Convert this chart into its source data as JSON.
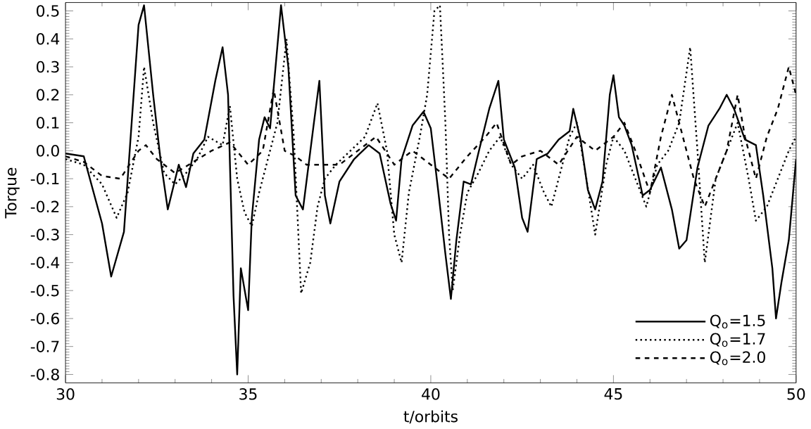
{
  "chart_data": {
    "type": "line",
    "xlabel": "t/orbits",
    "ylabel": "Torque",
    "xlim": [
      30,
      50
    ],
    "ylim": [
      -0.83,
      0.53
    ],
    "xticks": [
      30,
      35,
      40,
      45,
      50
    ],
    "yticks": [
      -0.8,
      -0.7,
      -0.6,
      -0.5,
      -0.4,
      -0.3,
      -0.2,
      -0.1,
      {
        "value": 0,
        "label": "0.0"
      },
      0.1,
      0.2,
      0.3,
      0.4,
      0.5
    ],
    "legend": "bottom right",
    "grid": false,
    "series": [
      {
        "name": "Q$_{o}$=1.5",
        "color": "#000000",
        "line_style": "solid",
        "x": [
          30,
          30.5,
          31.0,
          31.25,
          31.6,
          32.0,
          32.15,
          32.4,
          32.6,
          32.8,
          33.1,
          33.3,
          33.5,
          33.8,
          34.1,
          34.3,
          34.45,
          34.6,
          34.7,
          34.8,
          35.0,
          35.1,
          35.3,
          35.45,
          35.6,
          35.9,
          36.1,
          36.3,
          36.5,
          36.8,
          36.95,
          37.1,
          37.25,
          37.5,
          37.9,
          38.3,
          38.6,
          38.9,
          39.05,
          39.2,
          39.5,
          39.8,
          40.0,
          40.2,
          40.4,
          40.55,
          40.7,
          40.9,
          41.1,
          41.3,
          41.6,
          41.85,
          42.0,
          42.3,
          42.5,
          42.65,
          42.9,
          43.2,
          43.5,
          43.8,
          43.9,
          44.1,
          44.3,
          44.5,
          44.7,
          44.9,
          45.0,
          45.15,
          45.3,
          45.5,
          45.8,
          46.0,
          46.3,
          46.6,
          46.8,
          47.0,
          47.3,
          47.6,
          47.9,
          48.1,
          48.3,
          48.6,
          48.9,
          49.1,
          49.35,
          49.45,
          49.6,
          49.8,
          50.0
        ],
        "values": [
          -0.01,
          -0.02,
          -0.26,
          -0.45,
          -0.29,
          0.45,
          0.52,
          0.2,
          -0.03,
          -0.21,
          -0.05,
          -0.13,
          -0.01,
          0.04,
          0.25,
          0.37,
          0.2,
          -0.52,
          -0.8,
          -0.42,
          -0.57,
          -0.24,
          0.04,
          0.12,
          0.08,
          0.52,
          0.3,
          -0.16,
          -0.21,
          0.1,
          0.25,
          -0.16,
          -0.26,
          -0.11,
          -0.03,
          0.02,
          -0.01,
          -0.19,
          -0.25,
          -0.03,
          0.09,
          0.14,
          0.08,
          -0.14,
          -0.37,
          -0.53,
          -0.32,
          -0.11,
          -0.12,
          -0.01,
          0.15,
          0.25,
          0.04,
          -0.06,
          -0.24,
          -0.29,
          -0.03,
          -0.01,
          0.04,
          0.07,
          0.15,
          0.04,
          -0.14,
          -0.21,
          -0.11,
          0.2,
          0.27,
          0.12,
          0.09,
          0.02,
          -0.16,
          -0.14,
          -0.06,
          -0.21,
          -0.35,
          -0.32,
          -0.06,
          0.09,
          0.15,
          0.2,
          0.15,
          0.04,
          0.02,
          -0.16,
          -0.42,
          -0.6,
          -0.47,
          -0.32,
          -0.03
        ]
      },
      {
        "name": "Q$_{o}$=1.7",
        "color": "#000000",
        "line_style": "dotted",
        "x": [
          30,
          30.5,
          31.0,
          31.4,
          31.7,
          32.0,
          32.15,
          32.4,
          32.7,
          33.0,
          33.3,
          33.6,
          33.9,
          34.3,
          34.5,
          34.7,
          34.9,
          35.1,
          35.3,
          35.5,
          35.8,
          36.05,
          36.25,
          36.45,
          36.7,
          36.9,
          37.1,
          37.4,
          37.8,
          38.2,
          38.54,
          38.8,
          39.0,
          39.2,
          39.4,
          39.7,
          39.9,
          40.1,
          40.25,
          40.4,
          40.5,
          40.6,
          40.8,
          41.0,
          41.3,
          41.6,
          41.9,
          42.2,
          42.5,
          42.8,
          43.1,
          43.3,
          43.5,
          43.8,
          44.0,
          44.2,
          44.5,
          44.8,
          45.0,
          45.3,
          45.6,
          45.9,
          46.2,
          46.5,
          46.8,
          47.1,
          47.3,
          47.5,
          47.8,
          48.1,
          48.4,
          48.7,
          48.9,
          49.2,
          49.5,
          49.8,
          50.0
        ],
        "values": [
          -0.03,
          -0.05,
          -0.12,
          -0.24,
          -0.15,
          0.05,
          0.3,
          0.1,
          -0.08,
          -0.12,
          -0.08,
          -0.03,
          0.05,
          0.02,
          0.16,
          -0.1,
          -0.22,
          -0.27,
          -0.15,
          -0.05,
          0.1,
          0.4,
          0.05,
          -0.51,
          -0.4,
          -0.2,
          -0.1,
          -0.05,
          0.0,
          0.05,
          0.17,
          0.0,
          -0.3,
          -0.4,
          -0.15,
          0.05,
          0.2,
          0.5,
          0.52,
          0.1,
          -0.3,
          -0.5,
          -0.3,
          -0.15,
          -0.08,
          0.0,
          0.05,
          -0.05,
          -0.1,
          -0.05,
          -0.15,
          -0.2,
          -0.1,
          0.05,
          0.1,
          -0.05,
          -0.3,
          -0.05,
          0.05,
          0.0,
          -0.1,
          -0.2,
          -0.05,
          0.0,
          0.1,
          0.37,
          0.0,
          -0.4,
          -0.1,
          0.0,
          0.1,
          -0.1,
          -0.25,
          -0.2,
          -0.1,
          0.0,
          0.05
        ]
      },
      {
        "name": "Q$_{o}$=2.0",
        "color": "#000000",
        "line_style": "dashed",
        "x": [
          30,
          30.5,
          31.0,
          31.5,
          32.0,
          32.2,
          32.5,
          33.0,
          33.5,
          34.0,
          34.5,
          35.0,
          35.4,
          35.7,
          36.0,
          36.3,
          36.6,
          37.0,
          37.5,
          38.0,
          38.5,
          39.0,
          39.5,
          40.0,
          40.5,
          41.0,
          41.5,
          41.8,
          42.2,
          42.5,
          43.0,
          43.5,
          44.0,
          44.5,
          45.0,
          45.3,
          45.6,
          46.0,
          46.3,
          46.6,
          46.9,
          47.2,
          47.5,
          47.8,
          48.1,
          48.4,
          48.6,
          48.9,
          49.2,
          49.5,
          49.8,
          50.0
        ],
        "values": [
          -0.02,
          -0.04,
          -0.09,
          -0.1,
          0.0,
          0.02,
          -0.03,
          -0.08,
          -0.04,
          0.0,
          0.03,
          -0.05,
          0.0,
          0.22,
          0.0,
          -0.02,
          -0.05,
          -0.05,
          -0.05,
          0.0,
          0.05,
          -0.05,
          0.0,
          -0.05,
          -0.1,
          -0.02,
          0.05,
          0.1,
          -0.05,
          -0.02,
          0.0,
          -0.05,
          0.05,
          0.0,
          0.05,
          0.1,
          0.0,
          -0.15,
          0.05,
          0.2,
          0.05,
          -0.1,
          -0.2,
          -0.1,
          0.0,
          0.2,
          0.05,
          -0.1,
          0.05,
          0.15,
          0.3,
          0.2
        ]
      }
    ]
  }
}
